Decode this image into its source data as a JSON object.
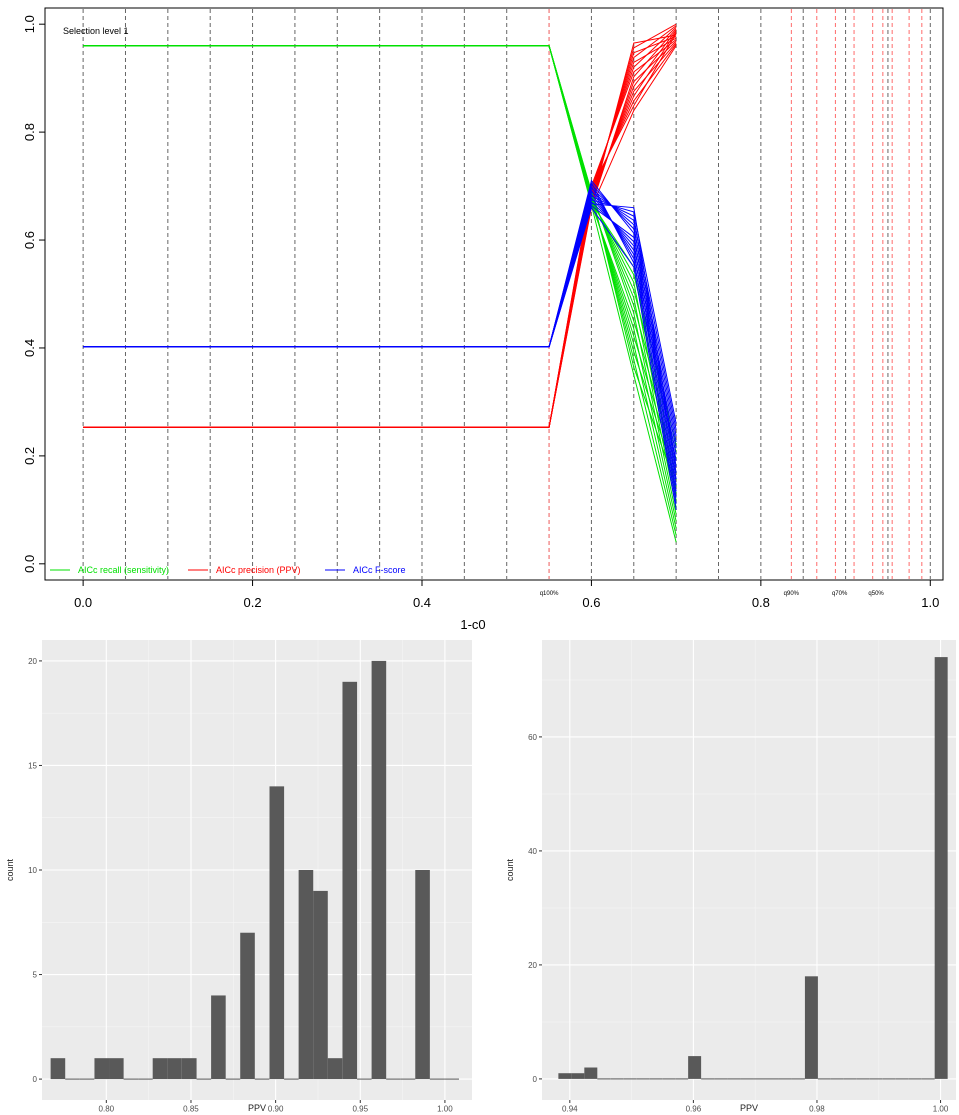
{
  "chart_data": [
    {
      "type": "line",
      "title": "Selection level 1",
      "xlabel": "1-c0",
      "ylabel": "",
      "xlim": [
        -0.045,
        1.015
      ],
      "ylim": [
        -0.03,
        1.03
      ],
      "x_ticks": [
        "0.0",
        "0.2",
        "0.4",
        "0.6",
        "0.8",
        "1.0"
      ],
      "x_tick_values": [
        0,
        0.2,
        0.4,
        0.6,
        0.8,
        1.0
      ],
      "y_ticks": [
        "0.0",
        "0.2",
        "0.4",
        "0.6",
        "0.8",
        "1.0"
      ],
      "y_tick_values": [
        0,
        0.2,
        0.4,
        0.6,
        0.8,
        1.0
      ],
      "gray_vlines": [
        0,
        0.05,
        0.1,
        0.15,
        0.2,
        0.25,
        0.3,
        0.35,
        0.4,
        0.45,
        0.5,
        0.55,
        0.6,
        0.65,
        0.7,
        0.75,
        0.8,
        0.85,
        0.9,
        0.95,
        1.0
      ],
      "red_vlines": [
        0.55,
        0.836,
        0.866,
        0.888,
        0.91,
        0.932,
        0.944,
        0.955,
        0.975,
        0.99
      ],
      "quantile_labels": [
        {
          "x": 0.55,
          "text": "q100%"
        },
        {
          "x": 0.836,
          "text": "q90%"
        },
        {
          "x": 0.893,
          "text": "q70%"
        },
        {
          "x": 0.936,
          "text": "q50%"
        }
      ],
      "legend_position": "bottom-left",
      "colors": {
        "recall": "#00e000",
        "precision": "#ff0000",
        "fscore": "#0000ff"
      },
      "series": [
        {
          "name": "AICc recall (sensitivity)",
          "color": "#00e000",
          "x": [
            0,
            0.55,
            0.6,
            0.65,
            0.7
          ],
          "constant": 0.96,
          "at_0_6": [
            0.665,
            0.69
          ],
          "at_0_65": [
            0.35,
            0.55
          ],
          "at_0_7": [
            0.04,
            0.22
          ]
        },
        {
          "name": "AICc precision (PPV)",
          "color": "#ff0000",
          "x": [
            0,
            0.55,
            0.6,
            0.65,
            0.7
          ],
          "constant": 0.253,
          "at_0_6": [
            0.66,
            0.7
          ],
          "at_0_65": [
            0.84,
            0.965
          ],
          "at_0_7": [
            0.96,
            1.0
          ]
        },
        {
          "name": "AICc F-score",
          "color": "#0000ff",
          "x": [
            0,
            0.55,
            0.6,
            0.65,
            0.7
          ],
          "constant": 0.402,
          "at_0_6": [
            0.66,
            0.71
          ],
          "at_0_65": [
            0.55,
            0.66
          ],
          "at_0_7": [
            0.1,
            0.26
          ]
        }
      ],
      "lines_per_series": 15
    },
    {
      "type": "bar",
      "xlabel": "PPV",
      "ylabel": "count",
      "xlim": [
        0.762,
        1.016
      ],
      "ylim": [
        -1,
        21
      ],
      "x_ticks": [
        "0.80",
        "0.85",
        "0.90",
        "0.95",
        "1.00"
      ],
      "x_tick_values": [
        0.8,
        0.85,
        0.9,
        0.95,
        1.0
      ],
      "y_ticks": [
        "0",
        "5",
        "10",
        "15",
        "20"
      ],
      "y_tick_values": [
        0,
        5,
        10,
        15,
        20
      ],
      "bin_width": 0.00862,
      "bin_centers": [
        0.7714,
        0.78,
        0.7886,
        0.7973,
        0.8059,
        0.8145,
        0.8231,
        0.8317,
        0.8403,
        0.849,
        0.8576,
        0.8662,
        0.8748,
        0.8834,
        0.892,
        0.9007,
        0.9093,
        0.9179,
        0.9265,
        0.9351,
        0.9438,
        0.9524,
        0.961,
        0.9696,
        0.9782,
        0.9868,
        0.9954,
        1.004
      ],
      "values": [
        1,
        0,
        0,
        1,
        1,
        0,
        0,
        1,
        1,
        1,
        0,
        4,
        0,
        7,
        0,
        14,
        0,
        10,
        9,
        1,
        19,
        0,
        20,
        0,
        0,
        10,
        0,
        0
      ],
      "bar_color": "#595959",
      "background": "#ebebeb"
    },
    {
      "type": "bar",
      "xlabel": "PPV",
      "ylabel": "count",
      "xlim": [
        0.9355,
        1.0025
      ],
      "ylim": [
        -3.7,
        77
      ],
      "x_ticks": [
        "0.94",
        "0.96",
        "0.98",
        "1.00"
      ],
      "x_tick_values": [
        0.94,
        0.96,
        0.98,
        1.0
      ],
      "y_ticks": [
        "0",
        "20",
        "40",
        "60"
      ],
      "y_tick_values": [
        0,
        20,
        40,
        60
      ],
      "bin_width": 0.0021,
      "bin_centers": [
        0.9392,
        0.9413,
        0.9434,
        0.9455,
        0.9476,
        0.9497,
        0.9518,
        0.9539,
        0.956,
        0.9581,
        0.9602,
        0.9623,
        0.9644,
        0.9665,
        0.9686,
        0.9707,
        0.9728,
        0.9749,
        0.977,
        0.9791,
        0.9812,
        0.9833,
        0.9854,
        0.9875,
        0.9896,
        0.9917,
        0.9938,
        0.9959,
        0.998,
        1.0001
      ],
      "values": [
        1,
        1,
        2,
        0,
        0,
        0,
        0,
        0,
        0,
        0,
        4,
        0,
        0,
        0,
        0,
        0,
        0,
        0,
        0,
        18,
        0,
        0,
        0,
        0,
        0,
        0,
        0,
        0,
        0,
        74
      ],
      "bar_color": "#595959",
      "background": "#ebebeb"
    }
  ]
}
